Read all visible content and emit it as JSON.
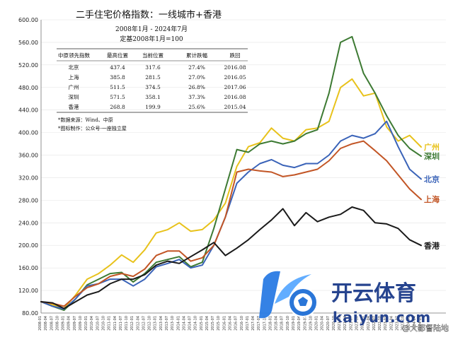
{
  "chart_data": {
    "type": "line",
    "title": "二手住宅价格指数：一线城市+香港",
    "subtitle_lines": [
      "2008年1月 - 2024年7月",
      "定基2008年1月=100"
    ],
    "ylim": [
      80,
      600
    ],
    "yticks": [
      80,
      120,
      160,
      200,
      240,
      280,
      320,
      360,
      400,
      440,
      480,
      520,
      560,
      600
    ],
    "x_start": "2008-01",
    "x_end": "2024-07",
    "series": [
      {
        "name": "广州",
        "color": "#e8c21b",
        "points": [
          [
            "2008-01",
            100
          ],
          [
            "2008-07",
            95
          ],
          [
            "2009-01",
            88
          ],
          [
            "2009-07",
            112
          ],
          [
            "2010-01",
            140
          ],
          [
            "2010-07",
            150
          ],
          [
            "2011-01",
            165
          ],
          [
            "2011-07",
            183
          ],
          [
            "2012-01",
            170
          ],
          [
            "2012-07",
            192
          ],
          [
            "2013-01",
            222
          ],
          [
            "2013-07",
            228
          ],
          [
            "2014-01",
            240
          ],
          [
            "2014-07",
            225
          ],
          [
            "2015-01",
            228
          ],
          [
            "2015-07",
            245
          ],
          [
            "2016-01",
            275
          ],
          [
            "2016-07",
            340
          ],
          [
            "2017-01",
            375
          ],
          [
            "2017-07",
            382
          ],
          [
            "2018-01",
            408
          ],
          [
            "2018-07",
            390
          ],
          [
            "2019-01",
            385
          ],
          [
            "2019-07",
            405
          ],
          [
            "2020-01",
            408
          ],
          [
            "2020-07",
            420
          ],
          [
            "2021-01",
            480
          ],
          [
            "2021-07",
            495
          ],
          [
            "2022-01",
            465
          ],
          [
            "2022-07",
            470
          ],
          [
            "2023-01",
            410
          ],
          [
            "2023-07",
            385
          ],
          [
            "2024-01",
            395
          ],
          [
            "2024-07",
            374.5
          ]
        ]
      },
      {
        "name": "深圳",
        "color": "#3d7a33",
        "points": [
          [
            "2008-01",
            100
          ],
          [
            "2008-07",
            92
          ],
          [
            "2009-01",
            85
          ],
          [
            "2009-07",
            105
          ],
          [
            "2010-01",
            130
          ],
          [
            "2010-07",
            140
          ],
          [
            "2011-01",
            150
          ],
          [
            "2011-07",
            152
          ],
          [
            "2012-01",
            135
          ],
          [
            "2012-07",
            150
          ],
          [
            "2013-01",
            170
          ],
          [
            "2013-07",
            175
          ],
          [
            "2014-01",
            180
          ],
          [
            "2014-07",
            162
          ],
          [
            "2015-01",
            170
          ],
          [
            "2015-07",
            230
          ],
          [
            "2016-01",
            300
          ],
          [
            "2016-07",
            370
          ],
          [
            "2017-01",
            365
          ],
          [
            "2017-07",
            380
          ],
          [
            "2018-01",
            385
          ],
          [
            "2018-07",
            380
          ],
          [
            "2019-01",
            385
          ],
          [
            "2019-07",
            398
          ],
          [
            "2020-01",
            405
          ],
          [
            "2020-07",
            470
          ],
          [
            "2021-01",
            560
          ],
          [
            "2021-07",
            570
          ],
          [
            "2022-01",
            505
          ],
          [
            "2022-07",
            470
          ],
          [
            "2023-01",
            430
          ],
          [
            "2023-07",
            395
          ],
          [
            "2024-01",
            372
          ],
          [
            "2024-07",
            358.1
          ]
        ]
      },
      {
        "name": "北京",
        "color": "#3a63b8",
        "points": [
          [
            "2008-01",
            100
          ],
          [
            "2008-07",
            92
          ],
          [
            "2009-01",
            87
          ],
          [
            "2009-07",
            105
          ],
          [
            "2010-01",
            128
          ],
          [
            "2010-07",
            132
          ],
          [
            "2011-01",
            140
          ],
          [
            "2011-07",
            140
          ],
          [
            "2012-01",
            128
          ],
          [
            "2012-07",
            140
          ],
          [
            "2013-01",
            162
          ],
          [
            "2013-07",
            168
          ],
          [
            "2014-01",
            175
          ],
          [
            "2014-07",
            160
          ],
          [
            "2015-01",
            165
          ],
          [
            "2015-07",
            200
          ],
          [
            "2016-01",
            250
          ],
          [
            "2016-07",
            310
          ],
          [
            "2017-01",
            330
          ],
          [
            "2017-07",
            345
          ],
          [
            "2018-01",
            352
          ],
          [
            "2018-07",
            342
          ],
          [
            "2019-01",
            338
          ],
          [
            "2019-07",
            345
          ],
          [
            "2020-01",
            345
          ],
          [
            "2020-07",
            360
          ],
          [
            "2021-01",
            385
          ],
          [
            "2021-07",
            395
          ],
          [
            "2022-01",
            390
          ],
          [
            "2022-07",
            398
          ],
          [
            "2023-01",
            420
          ],
          [
            "2023-07",
            375
          ],
          [
            "2024-01",
            335
          ],
          [
            "2024-07",
            317.6
          ]
        ]
      },
      {
        "name": "上海",
        "color": "#c25525",
        "points": [
          [
            "2008-01",
            100
          ],
          [
            "2008-07",
            97
          ],
          [
            "2009-01",
            92
          ],
          [
            "2009-07",
            110
          ],
          [
            "2010-01",
            125
          ],
          [
            "2010-07",
            132
          ],
          [
            "2011-01",
            145
          ],
          [
            "2011-07",
            150
          ],
          [
            "2012-01",
            145
          ],
          [
            "2012-07",
            158
          ],
          [
            "2013-01",
            182
          ],
          [
            "2013-07",
            190
          ],
          [
            "2014-01",
            190
          ],
          [
            "2014-07",
            172
          ],
          [
            "2015-01",
            178
          ],
          [
            "2015-07",
            200
          ],
          [
            "2016-01",
            250
          ],
          [
            "2016-07",
            330
          ],
          [
            "2017-01",
            335
          ],
          [
            "2017-07",
            332
          ],
          [
            "2018-01",
            330
          ],
          [
            "2018-07",
            322
          ],
          [
            "2019-01",
            325
          ],
          [
            "2019-07",
            330
          ],
          [
            "2020-01",
            335
          ],
          [
            "2020-07",
            350
          ],
          [
            "2021-01",
            372
          ],
          [
            "2021-07",
            380
          ],
          [
            "2022-01",
            385
          ],
          [
            "2022-07",
            368
          ],
          [
            "2023-01",
            350
          ],
          [
            "2023-07",
            325
          ],
          [
            "2024-01",
            300
          ],
          [
            "2024-07",
            281.5
          ]
        ]
      },
      {
        "name": "香港",
        "color": "#1a1a1a",
        "points": [
          [
            "2008-01",
            100
          ],
          [
            "2008-07",
            98
          ],
          [
            "2009-01",
            88
          ],
          [
            "2009-07",
            100
          ],
          [
            "2010-01",
            112
          ],
          [
            "2010-07",
            118
          ],
          [
            "2011-01",
            132
          ],
          [
            "2011-07",
            140
          ],
          [
            "2012-01",
            140
          ],
          [
            "2012-07",
            148
          ],
          [
            "2013-01",
            165
          ],
          [
            "2013-07",
            172
          ],
          [
            "2014-01",
            168
          ],
          [
            "2014-07",
            180
          ],
          [
            "2015-01",
            192
          ],
          [
            "2015-07",
            205
          ],
          [
            "2016-01",
            182
          ],
          [
            "2016-07",
            195
          ],
          [
            "2017-01",
            210
          ],
          [
            "2017-07",
            228
          ],
          [
            "2018-01",
            245
          ],
          [
            "2018-07",
            265
          ],
          [
            "2019-01",
            235
          ],
          [
            "2019-07",
            258
          ],
          [
            "2020-01",
            242
          ],
          [
            "2020-07",
            250
          ],
          [
            "2021-01",
            255
          ],
          [
            "2021-07",
            268
          ],
          [
            "2022-01",
            262
          ],
          [
            "2022-07",
            240
          ],
          [
            "2023-01",
            238
          ],
          [
            "2023-07",
            230
          ],
          [
            "2024-01",
            210
          ],
          [
            "2024-07",
            199.9
          ]
        ]
      }
    ]
  },
  "table": {
    "headers": [
      "中原领先指数",
      "最高位置",
      "当前位置",
      "累计跌幅",
      "跌回"
    ],
    "rows": [
      [
        "北京",
        "437.4",
        "317.6",
        "27.4%",
        "2016.08"
      ],
      [
        "上海",
        "385.8",
        "281.5",
        "27.0%",
        "2016.05"
      ],
      [
        "广州",
        "511.5",
        "374.5",
        "26.8%",
        "2017.06"
      ],
      [
        "深圳",
        "571.5",
        "358.1",
        "37.3%",
        "2016.08"
      ],
      [
        "香港",
        "268.8",
        "199.9",
        "25.6%",
        "2015.04"
      ]
    ]
  },
  "notes": [
    "*数据来源：Wind、中原",
    "*图标制作：公众号-一座独立屋"
  ],
  "watermark": {
    "brand_cn": "开云体育",
    "brand_url": "kaiyun.com",
    "corner_text": "@大都督陆地"
  }
}
